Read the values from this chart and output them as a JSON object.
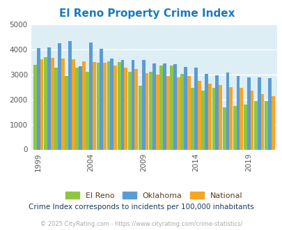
{
  "title": "El Reno Property Crime Index",
  "years": [
    1999,
    2000,
    2001,
    2002,
    2003,
    2004,
    2005,
    2006,
    2007,
    2008,
    2009,
    2010,
    2011,
    2012,
    2013,
    2014,
    2015,
    2016,
    2017,
    2018,
    2019,
    2020,
    2021
  ],
  "el_reno": [
    3380,
    3680,
    3270,
    2920,
    3280,
    3110,
    3450,
    3520,
    3490,
    3110,
    2540,
    3110,
    3360,
    3360,
    3010,
    2470,
    2340,
    2450,
    1690,
    1740,
    1780,
    1940,
    1940
  ],
  "oklahoma": [
    4050,
    4070,
    4250,
    4320,
    3310,
    4270,
    4030,
    3620,
    3570,
    3570,
    3570,
    3430,
    3420,
    3410,
    3300,
    3270,
    3010,
    2950,
    3060,
    2920,
    2880,
    2870,
    2840
  ],
  "national": [
    3600,
    3660,
    3640,
    3590,
    3510,
    3490,
    3450,
    3340,
    3270,
    3220,
    3040,
    2990,
    2920,
    2870,
    2940,
    2740,
    2620,
    2570,
    2500,
    2460,
    2360,
    2200,
    2120
  ],
  "el_reno_color": "#8dc641",
  "oklahoma_color": "#5b9bd5",
  "national_color": "#f5a623",
  "bg_color": "#ddeef4",
  "grid_color": "#ffffff",
  "ylim": [
    0,
    5000
  ],
  "yticks": [
    0,
    1000,
    2000,
    3000,
    4000,
    5000
  ],
  "xtick_years": [
    1999,
    2004,
    2009,
    2014,
    2019
  ],
  "legend_labels": [
    "El Reno",
    "Oklahoma",
    "National"
  ],
  "legend_text_color": "#5a3e1b",
  "subtitle": "Crime Index corresponds to incidents per 100,000 inhabitants",
  "footer": "© 2025 CityRating.com - https://www.cityrating.com/crime-statistics/",
  "title_color": "#1a7abf",
  "subtitle_color": "#1a3a5c",
  "footer_color": "#aaaaaa",
  "bar_width": 0.32
}
